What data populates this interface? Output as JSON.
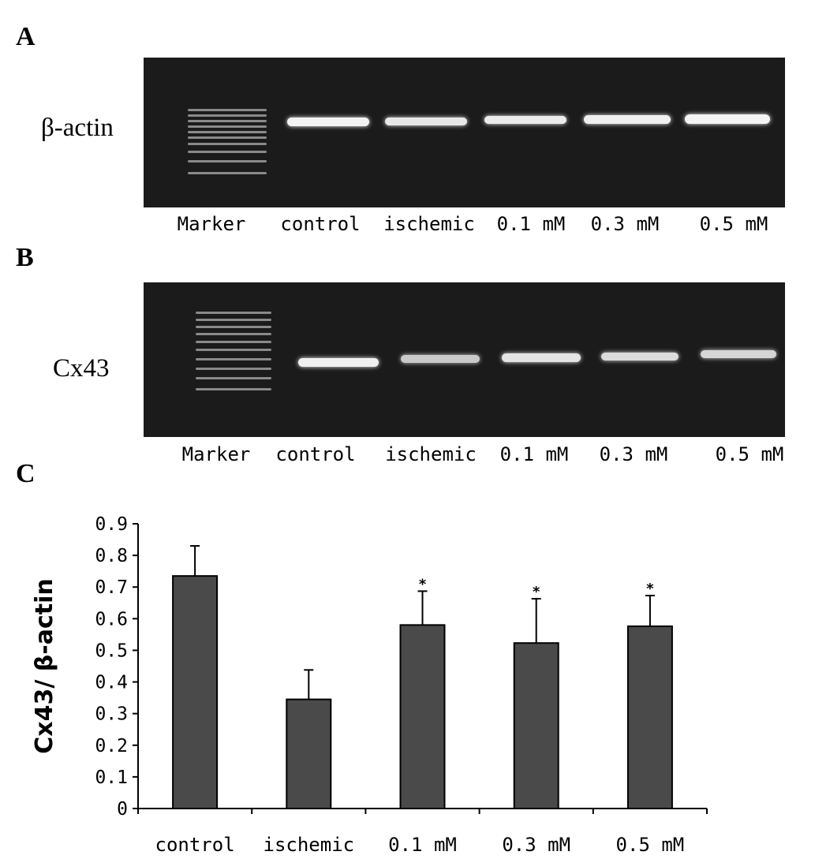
{
  "panels": {
    "a": {
      "letter": "A",
      "gene_label": "β-actin",
      "lanes": [
        "Marker",
        "control",
        "ischemic",
        "0.1 mM",
        "0.3 mM",
        "0.5 mM"
      ]
    },
    "b": {
      "letter": "B",
      "gene_label": "Cx43",
      "lanes": [
        "Marker",
        "control",
        "ischemic",
        "0.1 mM",
        "0.3 mM",
        "0.5 mM"
      ]
    },
    "c": {
      "letter": "C"
    }
  },
  "colors": {
    "gel_background": "#1b1b1b",
    "bar_fill": "#4a4a4a",
    "axis": "#000000"
  },
  "chart_data": {
    "type": "bar",
    "categories": [
      "control",
      "ischemic",
      "0.1 mM",
      "0.3 mM",
      "0.5 mM"
    ],
    "values": [
      0.735,
      0.345,
      0.58,
      0.523,
      0.576
    ],
    "error": [
      0.095,
      0.093,
      0.107,
      0.14,
      0.097
    ],
    "significance": [
      "",
      "",
      "*",
      "*",
      "*"
    ],
    "ylabel": "Cx43/ β-actin",
    "xlabel": "",
    "title": "",
    "ylim": [
      0,
      0.9
    ],
    "yticks": [
      "0",
      "0.1",
      "0.2",
      "0.3",
      "0.4",
      "0.5",
      "0.6",
      "0.7",
      "0.8",
      "0.9"
    ],
    "grid": false
  }
}
